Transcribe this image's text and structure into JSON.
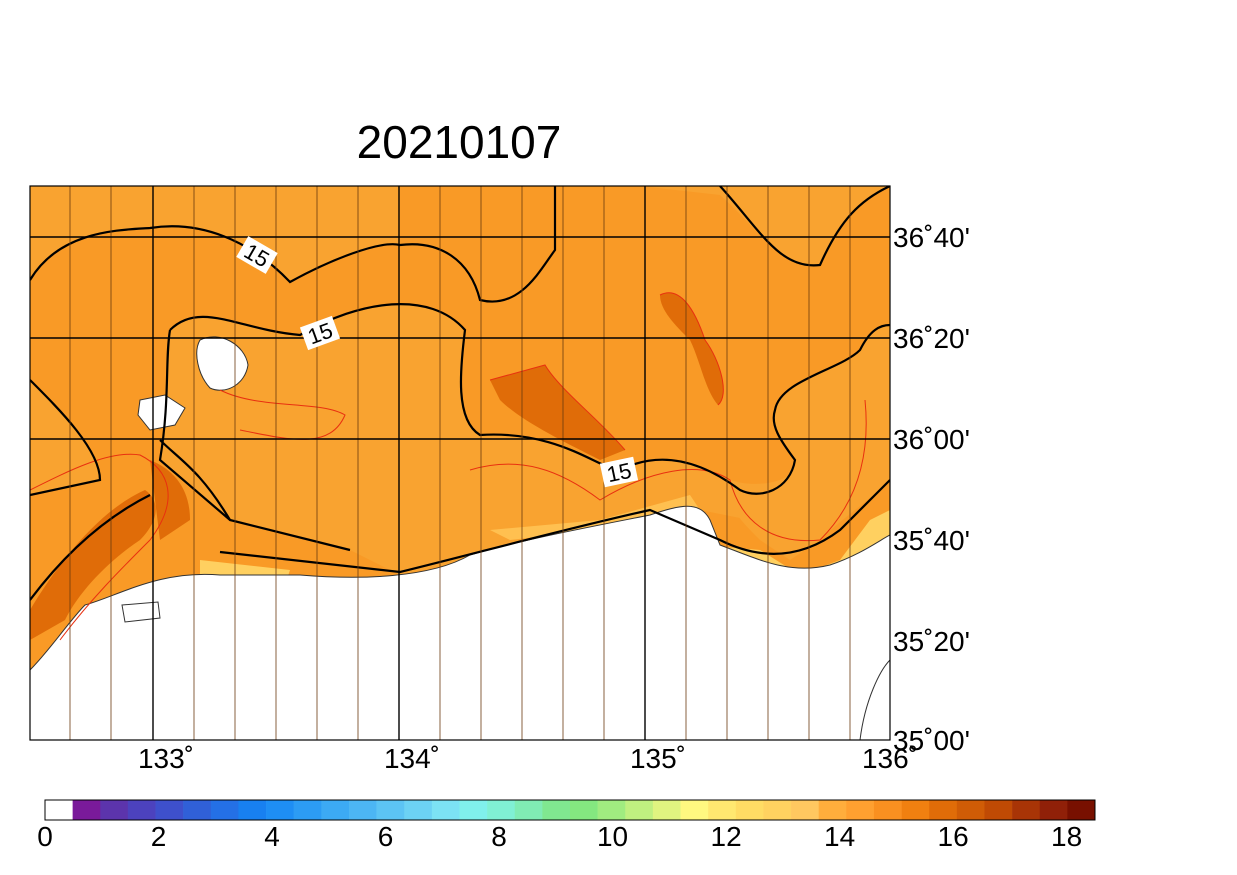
{
  "title": "20210107",
  "map": {
    "lon_labels": [
      "133˚",
      "134˚",
      "135˚",
      "136˚"
    ],
    "lat_labels": [
      "36˚40'",
      "36˚20'",
      "36˚00'",
      "35˚40'",
      "35˚20'",
      "35˚00'"
    ],
    "contour_labels": [
      "15",
      "15",
      "15"
    ]
  },
  "colorbar": {
    "lim": [
      0,
      18.5
    ],
    "ticks": [
      0,
      2,
      4,
      6,
      8,
      10,
      12,
      14,
      16,
      18
    ],
    "colors": [
      "#ffffff",
      "#7a1a9a",
      "#5c34ac",
      "#4c42be",
      "#3e50cc",
      "#3060d8",
      "#2470e6",
      "#1880f0",
      "#1e8ef4",
      "#2c9cf4",
      "#3caaf4",
      "#4cb6f4",
      "#5cc4f4",
      "#6cd2f4",
      "#7ce2f4",
      "#80f0ec",
      "#80f0d4",
      "#80ecb4",
      "#80e890",
      "#84e880",
      "#a0ec80",
      "#c0f080",
      "#e0f480",
      "#fff880",
      "#ffe870",
      "#ffdc64",
      "#ffd260",
      "#ffc860",
      "#ffae3c",
      "#ffa030",
      "#fa9020",
      "#f08010",
      "#e06c08",
      "#d05c06",
      "#c04a04",
      "#a83406",
      "#902008",
      "#781000"
    ]
  }
}
